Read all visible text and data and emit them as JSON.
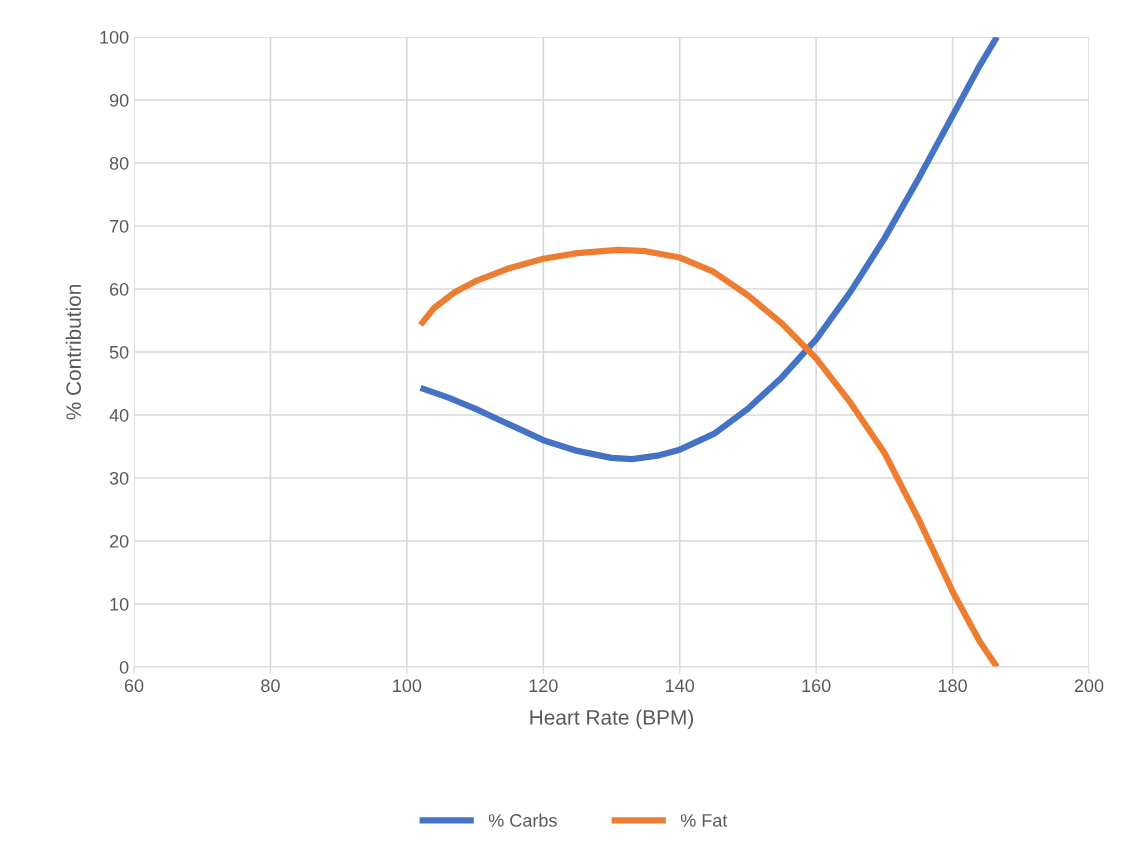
{
  "chart_data": {
    "type": "line",
    "xlabel": "Heart Rate (BPM)",
    "ylabel": "% Contribution",
    "xlim": [
      60,
      200
    ],
    "xticks": [
      60,
      80,
      100,
      120,
      140,
      160,
      180,
      200
    ],
    "ylim": [
      0,
      100
    ],
    "yticks": [
      0,
      10,
      20,
      30,
      40,
      50,
      60,
      70,
      80,
      90,
      100
    ],
    "grid": true,
    "legend": "bottom",
    "marker": "none",
    "line_style": "solid",
    "series": [
      {
        "name": "% Carbs",
        "color": "#4472c4",
        "x": [
          102,
          106,
          110,
          115,
          120,
          125,
          130,
          133,
          137,
          140,
          145,
          150,
          155,
          160,
          165,
          170,
          175,
          180,
          184,
          186.5
        ],
        "values": [
          44.3,
          42.8,
          41,
          38.5,
          36,
          34.3,
          33.2,
          33,
          33.6,
          34.5,
          37,
          41,
          46,
          52,
          59.5,
          68,
          77.5,
          87.5,
          95.5,
          100
        ]
      },
      {
        "name": "% Fat",
        "color": "#ed7d31",
        "x": [
          102,
          104,
          107,
          110,
          115,
          120,
          125,
          131,
          135,
          140,
          145,
          150,
          155,
          160,
          165,
          170,
          175,
          180,
          184,
          186.5
        ],
        "values": [
          54.3,
          57,
          59.5,
          61.2,
          63.3,
          64.8,
          65.7,
          66.2,
          66,
          65,
          62.7,
          59,
          54.5,
          49,
          42,
          34,
          23.5,
          12,
          4,
          0
        ]
      }
    ]
  }
}
